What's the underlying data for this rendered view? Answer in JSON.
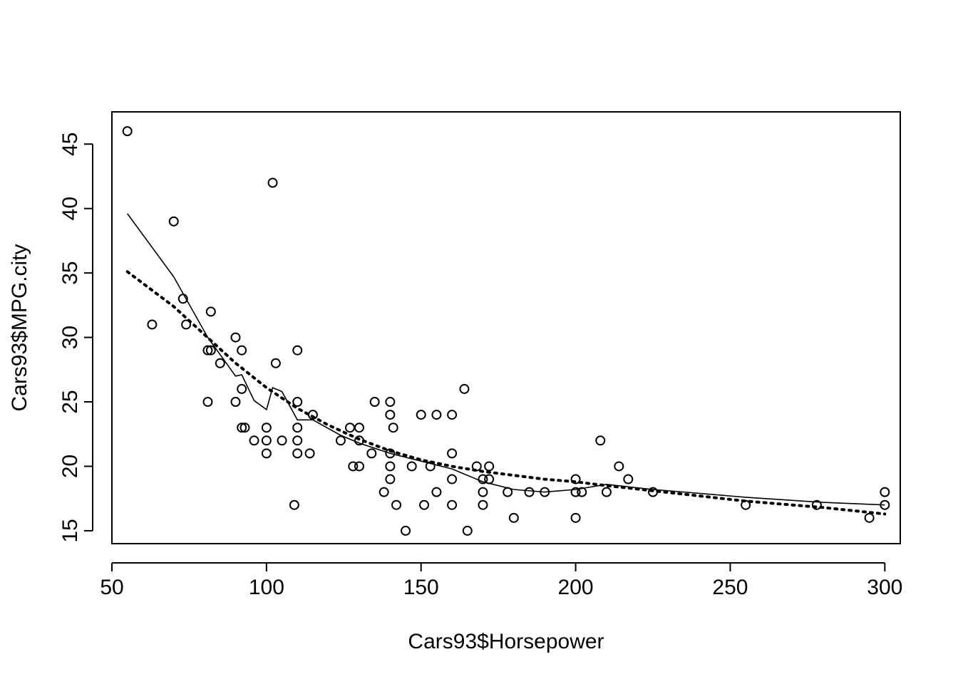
{
  "chart_data": {
    "type": "scatter",
    "title": "",
    "xlabel": "Cars93$Horsepower",
    "ylabel": "Cars93$MPG.city",
    "xlim": [
      50,
      305
    ],
    "ylim": [
      14,
      47.5
    ],
    "x_ticks": [
      50,
      100,
      150,
      200,
      250,
      300
    ],
    "y_ticks": [
      15,
      20,
      25,
      30,
      35,
      40,
      45
    ],
    "grid": false,
    "points": [
      [
        55,
        46
      ],
      [
        70,
        39
      ],
      [
        102,
        42
      ],
      [
        63,
        31
      ],
      [
        73,
        33
      ],
      [
        74,
        31
      ],
      [
        82,
        32
      ],
      [
        81,
        29
      ],
      [
        82,
        29
      ],
      [
        81,
        25
      ],
      [
        85,
        28
      ],
      [
        90,
        30
      ],
      [
        92,
        29
      ],
      [
        90,
        25
      ],
      [
        92,
        26
      ],
      [
        92,
        23
      ],
      [
        93,
        23
      ],
      [
        96,
        22
      ],
      [
        100,
        23
      ],
      [
        100,
        22
      ],
      [
        100,
        21
      ],
      [
        103,
        28
      ],
      [
        105,
        22
      ],
      [
        109,
        17
      ],
      [
        110,
        29
      ],
      [
        110,
        25
      ],
      [
        110,
        23
      ],
      [
        110,
        22
      ],
      [
        110,
        21
      ],
      [
        114,
        21
      ],
      [
        115,
        24
      ],
      [
        124,
        22
      ],
      [
        127,
        23
      ],
      [
        128,
        20
      ],
      [
        130,
        23
      ],
      [
        130,
        22
      ],
      [
        130,
        20
      ],
      [
        134,
        21
      ],
      [
        135,
        25
      ],
      [
        138,
        18
      ],
      [
        140,
        25
      ],
      [
        140,
        24
      ],
      [
        140,
        21
      ],
      [
        140,
        20
      ],
      [
        140,
        19
      ],
      [
        141,
        23
      ],
      [
        142,
        17
      ],
      [
        145,
        15
      ],
      [
        147,
        20
      ],
      [
        150,
        24
      ],
      [
        151,
        17
      ],
      [
        153,
        20
      ],
      [
        155,
        24
      ],
      [
        155,
        18
      ],
      [
        160,
        24
      ],
      [
        160,
        21
      ],
      [
        160,
        19
      ],
      [
        160,
        17
      ],
      [
        164,
        26
      ],
      [
        165,
        15
      ],
      [
        168,
        20
      ],
      [
        170,
        19
      ],
      [
        170,
        18
      ],
      [
        170,
        17
      ],
      [
        172,
        20
      ],
      [
        172,
        19
      ],
      [
        178,
        18
      ],
      [
        180,
        16
      ],
      [
        185,
        18
      ],
      [
        190,
        18
      ],
      [
        200,
        19
      ],
      [
        200,
        18
      ],
      [
        200,
        16
      ],
      [
        202,
        18
      ],
      [
        208,
        22
      ],
      [
        210,
        18
      ],
      [
        214,
        20
      ],
      [
        217,
        19
      ],
      [
        225,
        18
      ],
      [
        255,
        17
      ],
      [
        278,
        17
      ],
      [
        295,
        16
      ],
      [
        300,
        18
      ],
      [
        300,
        17
      ]
    ],
    "series": [
      {
        "style": "solid",
        "x": [
          55,
          70,
          81,
          90,
          92,
          96,
          100,
          102,
          105,
          110,
          115,
          124,
          130,
          140,
          150,
          160,
          170,
          180,
          190,
          200,
          210,
          225,
          255,
          280,
          300
        ],
        "y": [
          39.6,
          34.7,
          30.0,
          27.0,
          27.1,
          25.1,
          24.4,
          26.1,
          25.8,
          23.6,
          23.6,
          22.4,
          21.8,
          21.0,
          20.4,
          19.8,
          18.8,
          18.2,
          18.0,
          18.2,
          18.6,
          18.2,
          17.6,
          17.2,
          17.0
        ]
      },
      {
        "style": "dotted",
        "x": [
          55,
          70,
          80,
          90,
          100,
          110,
          120,
          130,
          140,
          150,
          160,
          170,
          180,
          190,
          200,
          210,
          225,
          255,
          280,
          300
        ],
        "y": [
          35.1,
          32.4,
          30.2,
          28.0,
          26.1,
          24.5,
          23.2,
          22.1,
          21.2,
          20.5,
          20.0,
          19.6,
          19.3,
          19.0,
          18.8,
          18.5,
          18.1,
          17.3,
          16.8,
          16.3
        ]
      }
    ]
  }
}
